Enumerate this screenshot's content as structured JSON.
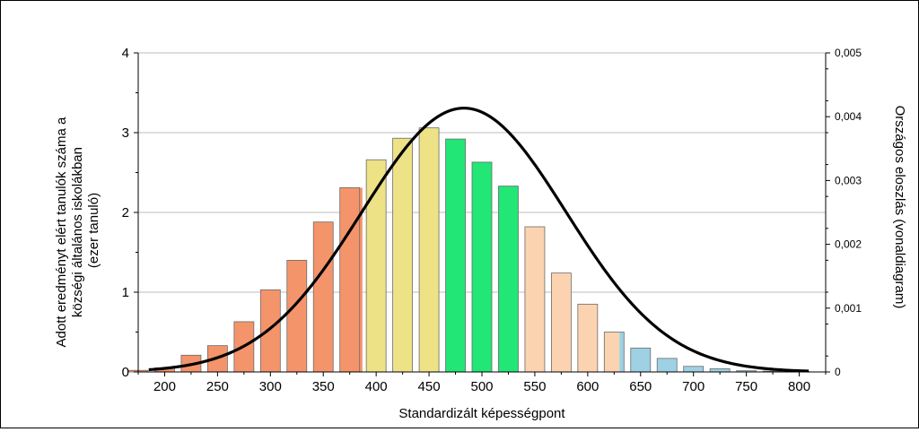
{
  "chart_data": {
    "type": "bar",
    "xlabel": "Standardizált képességpont",
    "ylabel_lines": [
      "Adott eredményt elért tanulók száma a",
      "községi általános iskolákban",
      "(ezer tanuló)"
    ],
    "y2label": "Országos eloszlás (vonaldiagram)",
    "x_ticks": [
      "200",
      "250",
      "300",
      "350",
      "400",
      "450",
      "500",
      "550",
      "600",
      "650",
      "700",
      "750",
      "800"
    ],
    "y_ticks": [
      "0",
      "1",
      "2",
      "3",
      "4"
    ],
    "y2_ticks": [
      "0",
      "0,001",
      "0,002",
      "0,003",
      "0,004",
      "0,005"
    ],
    "xlim": [
      175,
      825
    ],
    "ylim": [
      0,
      4
    ],
    "y2lim": [
      0,
      0.005
    ],
    "grid": true,
    "bar_width": 22,
    "bars": [
      {
        "x": 175,
        "value": 0.02,
        "color": "#f4946b"
      },
      {
        "x": 200,
        "value": 0.05,
        "color": "#f4946b"
      },
      {
        "x": 225,
        "value": 0.21,
        "color": "#f4946b"
      },
      {
        "x": 250,
        "value": 0.33,
        "color": "#f4946b"
      },
      {
        "x": 275,
        "value": 0.63,
        "color": "#f4946b"
      },
      {
        "x": 300,
        "value": 1.03,
        "color": "#f4946b"
      },
      {
        "x": 325,
        "value": 1.4,
        "color": "#f4946b"
      },
      {
        "x": 350,
        "value": 1.88,
        "color": "#f4946b"
      },
      {
        "x": 375,
        "value": 2.31,
        "color": "#f4946b",
        "split_color": "#ede286",
        "split_at": 387
      },
      {
        "x": 400,
        "value": 2.66,
        "color": "#ede286"
      },
      {
        "x": 425,
        "value": 2.93,
        "color": "#ede286"
      },
      {
        "x": 450,
        "value": 3.06,
        "color": "#ede286"
      },
      {
        "x": 475,
        "value": 2.92,
        "color": "#22e676"
      },
      {
        "x": 500,
        "value": 2.63,
        "color": "#22e676"
      },
      {
        "x": 525,
        "value": 2.33,
        "color": "#22e676"
      },
      {
        "x": 550,
        "value": 1.82,
        "color": "#fcd3b1"
      },
      {
        "x": 575,
        "value": 1.24,
        "color": "#fcd3b1"
      },
      {
        "x": 600,
        "value": 0.85,
        "color": "#fcd3b1"
      },
      {
        "x": 625,
        "value": 0.5,
        "color": "#fcd3b1",
        "split_color": "#9dd1e3",
        "split_at": 630
      },
      {
        "x": 650,
        "value": 0.3,
        "color": "#9dd1e3"
      },
      {
        "x": 675,
        "value": 0.17,
        "color": "#9dd1e3"
      },
      {
        "x": 700,
        "value": 0.07,
        "color": "#9dd1e3"
      },
      {
        "x": 725,
        "value": 0.04,
        "color": "#9dd1e3"
      },
      {
        "x": 750,
        "value": 0.015,
        "color": "#9dd1e3"
      },
      {
        "x": 775,
        "value": 0.01,
        "color": "#9dd1e3"
      },
      {
        "x": 800,
        "value": 0.005,
        "color": "#9dd1e3"
      }
    ],
    "line": {
      "type": "normal_pdf",
      "mean": 483,
      "sd": 96.5,
      "x_range": [
        185,
        810
      ],
      "color": "#000000"
    }
  }
}
